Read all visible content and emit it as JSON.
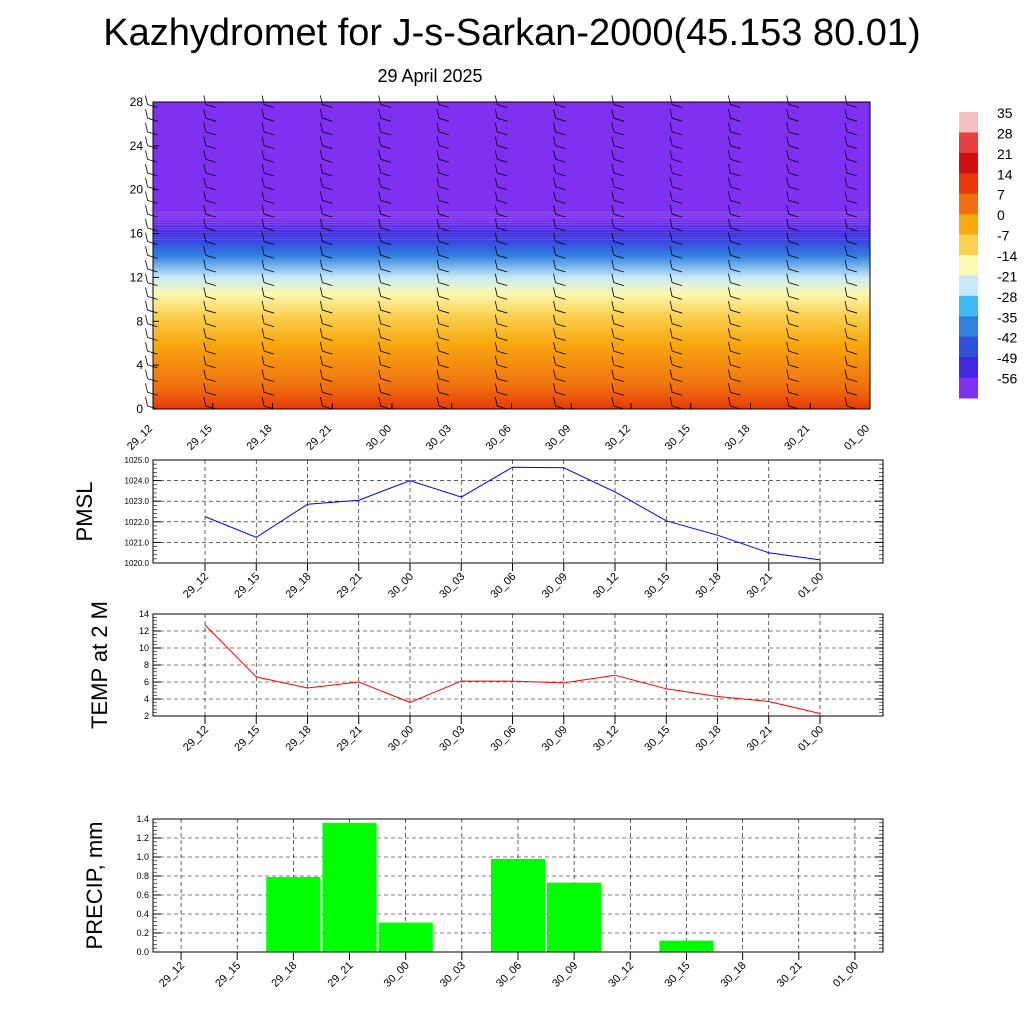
{
  "title": "Kazhydromet for J-s-Sarkan-2000(45.153 80.01)",
  "subtitle": "29 April 2025",
  "time_labels": [
    "29_12",
    "29_15",
    "29_18",
    "29_21",
    "30_00",
    "30_03",
    "30_06",
    "30_09",
    "30_12",
    "30_15",
    "30_18",
    "30_21",
    "01_00"
  ],
  "chart_data": [
    {
      "type": "heatmap",
      "title": "",
      "ylabel": "",
      "y_ticks": [
        "0",
        "4",
        "8",
        "12",
        "16",
        "20",
        "24",
        "28"
      ],
      "ylim": [
        0,
        28
      ],
      "colorbar": {
        "labels": [
          "35",
          "28",
          "21",
          "14",
          "7",
          "0",
          "-7",
          "-14",
          "-21",
          "-28",
          "-35",
          "-42",
          "-49",
          "-56"
        ],
        "colors": [
          "#f2c0c0",
          "#e84040",
          "#d01010",
          "#e83808",
          "#f07010",
          "#f8a810",
          "#fbd050",
          "#fff8b0",
          "#c8eaf8",
          "#40b8f0",
          "#3080e0",
          "#3050d8",
          "#4028e0",
          "#8030f0"
        ]
      },
      "temperature_bands_by_height": [
        {
          "height": 0,
          "value": 14
        },
        {
          "height": 2,
          "value": 7
        },
        {
          "height": 6,
          "value": 0
        },
        {
          "height": 8.5,
          "value": -7
        },
        {
          "height": 10.5,
          "value": -14
        },
        {
          "height": 12,
          "value": -21
        },
        {
          "height": 14,
          "value": -35
        },
        {
          "height": 16,
          "value": -49
        },
        {
          "height": 17.5,
          "value": -56
        },
        {
          "height": 28,
          "value": -56
        }
      ],
      "wind_barbs": true
    },
    {
      "type": "line",
      "ylabel": "PMSL",
      "ylim": [
        1020.0,
        1025.0
      ],
      "y_ticks": [
        "1020.0",
        "1021.0",
        "1022.0",
        "1023.0",
        "1024.0",
        "1025.0"
      ],
      "series": [
        {
          "values": [
            1022.25,
            1021.25,
            1022.85,
            1023.05,
            1024.0,
            1023.2,
            1024.65,
            1024.62,
            1023.45,
            1022.05,
            1021.35,
            1020.5,
            1020.15
          ]
        }
      ],
      "color": "#0000ff",
      "grid": true
    },
    {
      "type": "line",
      "ylabel": "TEMP at 2 M",
      "ylim": [
        2,
        14
      ],
      "y_ticks": [
        "2",
        "4",
        "6",
        "8",
        "10",
        "12",
        "14"
      ],
      "series": [
        {
          "values": [
            12.7,
            6.6,
            5.3,
            6.0,
            3.6,
            6.1,
            6.1,
            5.9,
            6.8,
            5.2,
            4.3,
            3.7,
            2.3
          ]
        }
      ],
      "color": "#ff0000",
      "grid": true
    },
    {
      "type": "bar",
      "ylabel": "PRECIP, mm",
      "ylim": [
        0.0,
        1.4
      ],
      "y_ticks": [
        "0.0",
        "0.2",
        "0.4",
        "0.6",
        "0.8",
        "1.0",
        "1.2",
        "1.4"
      ],
      "values": [
        0,
        0,
        0.79,
        1.36,
        0.31,
        0,
        0.98,
        0.73,
        0,
        0.12,
        0,
        0,
        0
      ],
      "color": "#00ff00",
      "grid": true
    }
  ]
}
